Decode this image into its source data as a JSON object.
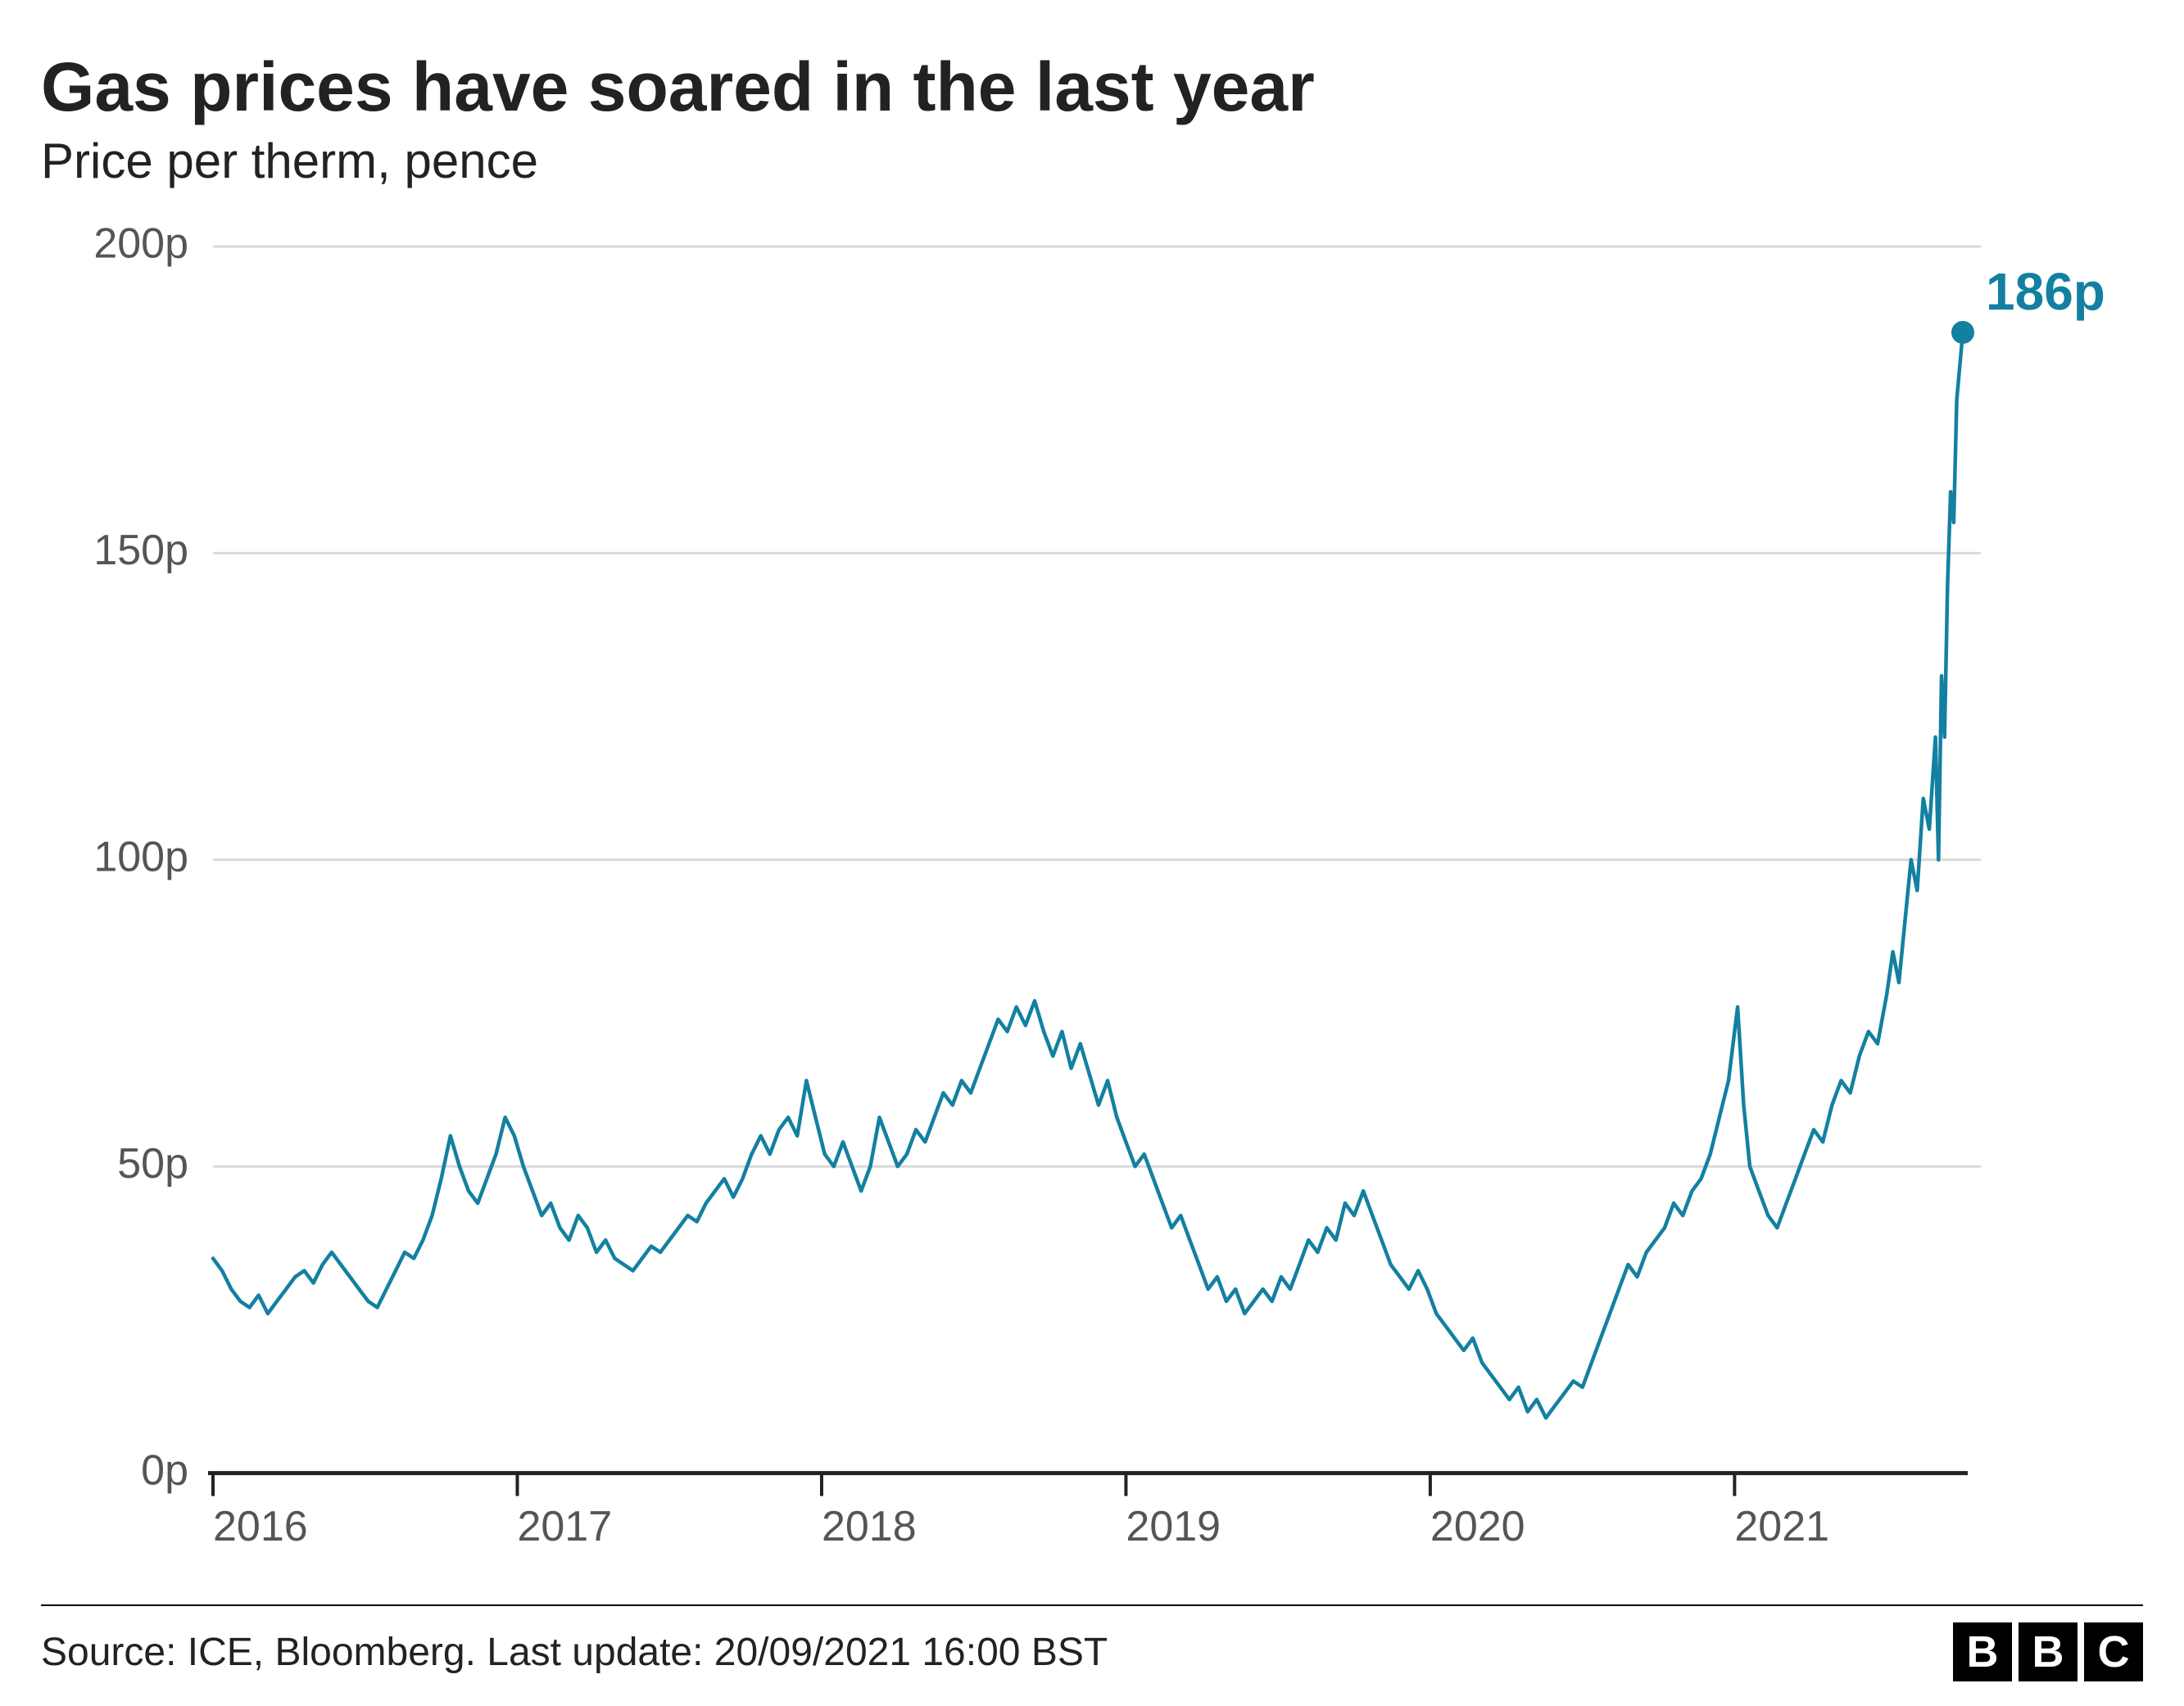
{
  "title": "Gas prices have soared in the last year",
  "subtitle": "Price per therm, pence",
  "source": "Source: ICE, Bloomberg. Last update: 20/09/2021 16:00 BST",
  "logo_letters": [
    "B",
    "B",
    "C"
  ],
  "end_point_label": "186p",
  "chart": {
    "type": "line",
    "line_color": "#1380a1",
    "line_width": 4.5,
    "end_marker_color": "#1380a1",
    "end_marker_radius": 14,
    "end_label_color": "#1380a1",
    "end_label_fontsize": 64,
    "grid_color": "#d9d9d9",
    "axis_color": "#222222",
    "tick_color": "#222222",
    "background_color": "#ffffff",
    "title_fontsize": 84,
    "title_color": "#222222",
    "subtitle_fontsize": 60,
    "subtitle_color": "#222222",
    "axis_label_fontsize": 52,
    "axis_label_color": "#555555",
    "source_fontsize": 48,
    "source_color": "#222222",
    "logo_box_size": 72,
    "logo_font_size": 54,
    "x_domain": [
      2016,
      2021.75
    ],
    "y_domain": [
      0,
      200
    ],
    "y_ticks": [
      0,
      50,
      100,
      150,
      200
    ],
    "y_tick_labels": [
      "0p",
      "50p",
      "100p",
      "150p",
      "200p"
    ],
    "x_ticks": [
      2016,
      2017,
      2018,
      2019,
      2020,
      2021
    ],
    "x_tick_labels": [
      "2016",
      "2017",
      "2018",
      "2019",
      "2020",
      "2021"
    ],
    "series": [
      {
        "x": 2016.0,
        "y": 35
      },
      {
        "x": 2016.03,
        "y": 33
      },
      {
        "x": 2016.06,
        "y": 30
      },
      {
        "x": 2016.09,
        "y": 28
      },
      {
        "x": 2016.12,
        "y": 27
      },
      {
        "x": 2016.15,
        "y": 29
      },
      {
        "x": 2016.18,
        "y": 26
      },
      {
        "x": 2016.21,
        "y": 28
      },
      {
        "x": 2016.24,
        "y": 30
      },
      {
        "x": 2016.27,
        "y": 32
      },
      {
        "x": 2016.3,
        "y": 33
      },
      {
        "x": 2016.33,
        "y": 31
      },
      {
        "x": 2016.36,
        "y": 34
      },
      {
        "x": 2016.39,
        "y": 36
      },
      {
        "x": 2016.42,
        "y": 34
      },
      {
        "x": 2016.45,
        "y": 32
      },
      {
        "x": 2016.48,
        "y": 30
      },
      {
        "x": 2016.51,
        "y": 28
      },
      {
        "x": 2016.54,
        "y": 27
      },
      {
        "x": 2016.57,
        "y": 30
      },
      {
        "x": 2016.6,
        "y": 33
      },
      {
        "x": 2016.63,
        "y": 36
      },
      {
        "x": 2016.66,
        "y": 35
      },
      {
        "x": 2016.69,
        "y": 38
      },
      {
        "x": 2016.72,
        "y": 42
      },
      {
        "x": 2016.75,
        "y": 48
      },
      {
        "x": 2016.78,
        "y": 55
      },
      {
        "x": 2016.81,
        "y": 50
      },
      {
        "x": 2016.84,
        "y": 46
      },
      {
        "x": 2016.87,
        "y": 44
      },
      {
        "x": 2016.9,
        "y": 48
      },
      {
        "x": 2016.93,
        "y": 52
      },
      {
        "x": 2016.96,
        "y": 58
      },
      {
        "x": 2016.99,
        "y": 55
      },
      {
        "x": 2017.02,
        "y": 50
      },
      {
        "x": 2017.05,
        "y": 46
      },
      {
        "x": 2017.08,
        "y": 42
      },
      {
        "x": 2017.11,
        "y": 44
      },
      {
        "x": 2017.14,
        "y": 40
      },
      {
        "x": 2017.17,
        "y": 38
      },
      {
        "x": 2017.2,
        "y": 42
      },
      {
        "x": 2017.23,
        "y": 40
      },
      {
        "x": 2017.26,
        "y": 36
      },
      {
        "x": 2017.29,
        "y": 38
      },
      {
        "x": 2017.32,
        "y": 35
      },
      {
        "x": 2017.35,
        "y": 34
      },
      {
        "x": 2017.38,
        "y": 33
      },
      {
        "x": 2017.41,
        "y": 35
      },
      {
        "x": 2017.44,
        "y": 37
      },
      {
        "x": 2017.47,
        "y": 36
      },
      {
        "x": 2017.5,
        "y": 38
      },
      {
        "x": 2017.53,
        "y": 40
      },
      {
        "x": 2017.56,
        "y": 42
      },
      {
        "x": 2017.59,
        "y": 41
      },
      {
        "x": 2017.62,
        "y": 44
      },
      {
        "x": 2017.65,
        "y": 46
      },
      {
        "x": 2017.68,
        "y": 48
      },
      {
        "x": 2017.71,
        "y": 45
      },
      {
        "x": 2017.74,
        "y": 48
      },
      {
        "x": 2017.77,
        "y": 52
      },
      {
        "x": 2017.8,
        "y": 55
      },
      {
        "x": 2017.83,
        "y": 52
      },
      {
        "x": 2017.86,
        "y": 56
      },
      {
        "x": 2017.89,
        "y": 58
      },
      {
        "x": 2017.92,
        "y": 55
      },
      {
        "x": 2017.95,
        "y": 64
      },
      {
        "x": 2017.98,
        "y": 58
      },
      {
        "x": 2018.01,
        "y": 52
      },
      {
        "x": 2018.04,
        "y": 50
      },
      {
        "x": 2018.07,
        "y": 54
      },
      {
        "x": 2018.1,
        "y": 50
      },
      {
        "x": 2018.13,
        "y": 46
      },
      {
        "x": 2018.16,
        "y": 50
      },
      {
        "x": 2018.19,
        "y": 58
      },
      {
        "x": 2018.22,
        "y": 54
      },
      {
        "x": 2018.25,
        "y": 50
      },
      {
        "x": 2018.28,
        "y": 52
      },
      {
        "x": 2018.31,
        "y": 56
      },
      {
        "x": 2018.34,
        "y": 54
      },
      {
        "x": 2018.37,
        "y": 58
      },
      {
        "x": 2018.4,
        "y": 62
      },
      {
        "x": 2018.43,
        "y": 60
      },
      {
        "x": 2018.46,
        "y": 64
      },
      {
        "x": 2018.49,
        "y": 62
      },
      {
        "x": 2018.52,
        "y": 66
      },
      {
        "x": 2018.55,
        "y": 70
      },
      {
        "x": 2018.58,
        "y": 74
      },
      {
        "x": 2018.61,
        "y": 72
      },
      {
        "x": 2018.64,
        "y": 76
      },
      {
        "x": 2018.67,
        "y": 73
      },
      {
        "x": 2018.7,
        "y": 77
      },
      {
        "x": 2018.73,
        "y": 72
      },
      {
        "x": 2018.76,
        "y": 68
      },
      {
        "x": 2018.79,
        "y": 72
      },
      {
        "x": 2018.82,
        "y": 66
      },
      {
        "x": 2018.85,
        "y": 70
      },
      {
        "x": 2018.88,
        "y": 65
      },
      {
        "x": 2018.91,
        "y": 60
      },
      {
        "x": 2018.94,
        "y": 64
      },
      {
        "x": 2018.97,
        "y": 58
      },
      {
        "x": 2019.0,
        "y": 54
      },
      {
        "x": 2019.03,
        "y": 50
      },
      {
        "x": 2019.06,
        "y": 52
      },
      {
        "x": 2019.09,
        "y": 48
      },
      {
        "x": 2019.12,
        "y": 44
      },
      {
        "x": 2019.15,
        "y": 40
      },
      {
        "x": 2019.18,
        "y": 42
      },
      {
        "x": 2019.21,
        "y": 38
      },
      {
        "x": 2019.24,
        "y": 34
      },
      {
        "x": 2019.27,
        "y": 30
      },
      {
        "x": 2019.3,
        "y": 32
      },
      {
        "x": 2019.33,
        "y": 28
      },
      {
        "x": 2019.36,
        "y": 30
      },
      {
        "x": 2019.39,
        "y": 26
      },
      {
        "x": 2019.42,
        "y": 28
      },
      {
        "x": 2019.45,
        "y": 30
      },
      {
        "x": 2019.48,
        "y": 28
      },
      {
        "x": 2019.51,
        "y": 32
      },
      {
        "x": 2019.54,
        "y": 30
      },
      {
        "x": 2019.57,
        "y": 34
      },
      {
        "x": 2019.6,
        "y": 38
      },
      {
        "x": 2019.63,
        "y": 36
      },
      {
        "x": 2019.66,
        "y": 40
      },
      {
        "x": 2019.69,
        "y": 38
      },
      {
        "x": 2019.72,
        "y": 44
      },
      {
        "x": 2019.75,
        "y": 42
      },
      {
        "x": 2019.78,
        "y": 46
      },
      {
        "x": 2019.81,
        "y": 42
      },
      {
        "x": 2019.84,
        "y": 38
      },
      {
        "x": 2019.87,
        "y": 34
      },
      {
        "x": 2019.9,
        "y": 32
      },
      {
        "x": 2019.93,
        "y": 30
      },
      {
        "x": 2019.96,
        "y": 33
      },
      {
        "x": 2019.99,
        "y": 30
      },
      {
        "x": 2020.02,
        "y": 26
      },
      {
        "x": 2020.05,
        "y": 24
      },
      {
        "x": 2020.08,
        "y": 22
      },
      {
        "x": 2020.11,
        "y": 20
      },
      {
        "x": 2020.14,
        "y": 22
      },
      {
        "x": 2020.17,
        "y": 18
      },
      {
        "x": 2020.2,
        "y": 16
      },
      {
        "x": 2020.23,
        "y": 14
      },
      {
        "x": 2020.26,
        "y": 12
      },
      {
        "x": 2020.29,
        "y": 14
      },
      {
        "x": 2020.32,
        "y": 10
      },
      {
        "x": 2020.35,
        "y": 12
      },
      {
        "x": 2020.38,
        "y": 9
      },
      {
        "x": 2020.41,
        "y": 11
      },
      {
        "x": 2020.44,
        "y": 13
      },
      {
        "x": 2020.47,
        "y": 15
      },
      {
        "x": 2020.5,
        "y": 14
      },
      {
        "x": 2020.53,
        "y": 18
      },
      {
        "x": 2020.56,
        "y": 22
      },
      {
        "x": 2020.59,
        "y": 26
      },
      {
        "x": 2020.62,
        "y": 30
      },
      {
        "x": 2020.65,
        "y": 34
      },
      {
        "x": 2020.68,
        "y": 32
      },
      {
        "x": 2020.71,
        "y": 36
      },
      {
        "x": 2020.74,
        "y": 38
      },
      {
        "x": 2020.77,
        "y": 40
      },
      {
        "x": 2020.8,
        "y": 44
      },
      {
        "x": 2020.83,
        "y": 42
      },
      {
        "x": 2020.86,
        "y": 46
      },
      {
        "x": 2020.89,
        "y": 48
      },
      {
        "x": 2020.92,
        "y": 52
      },
      {
        "x": 2020.95,
        "y": 58
      },
      {
        "x": 2020.98,
        "y": 64
      },
      {
        "x": 2021.01,
        "y": 76
      },
      {
        "x": 2021.03,
        "y": 60
      },
      {
        "x": 2021.05,
        "y": 50
      },
      {
        "x": 2021.08,
        "y": 46
      },
      {
        "x": 2021.11,
        "y": 42
      },
      {
        "x": 2021.14,
        "y": 40
      },
      {
        "x": 2021.17,
        "y": 44
      },
      {
        "x": 2021.2,
        "y": 48
      },
      {
        "x": 2021.23,
        "y": 52
      },
      {
        "x": 2021.26,
        "y": 56
      },
      {
        "x": 2021.29,
        "y": 54
      },
      {
        "x": 2021.32,
        "y": 60
      },
      {
        "x": 2021.35,
        "y": 64
      },
      {
        "x": 2021.38,
        "y": 62
      },
      {
        "x": 2021.41,
        "y": 68
      },
      {
        "x": 2021.44,
        "y": 72
      },
      {
        "x": 2021.47,
        "y": 70
      },
      {
        "x": 2021.5,
        "y": 78
      },
      {
        "x": 2021.52,
        "y": 85
      },
      {
        "x": 2021.54,
        "y": 80
      },
      {
        "x": 2021.56,
        "y": 90
      },
      {
        "x": 2021.58,
        "y": 100
      },
      {
        "x": 2021.6,
        "y": 95
      },
      {
        "x": 2021.62,
        "y": 110
      },
      {
        "x": 2021.64,
        "y": 105
      },
      {
        "x": 2021.66,
        "y": 120
      },
      {
        "x": 2021.67,
        "y": 100
      },
      {
        "x": 2021.68,
        "y": 130
      },
      {
        "x": 2021.69,
        "y": 120
      },
      {
        "x": 2021.7,
        "y": 145
      },
      {
        "x": 2021.71,
        "y": 160
      },
      {
        "x": 2021.72,
        "y": 155
      },
      {
        "x": 2021.73,
        "y": 175
      },
      {
        "x": 2021.75,
        "y": 186
      }
    ]
  }
}
